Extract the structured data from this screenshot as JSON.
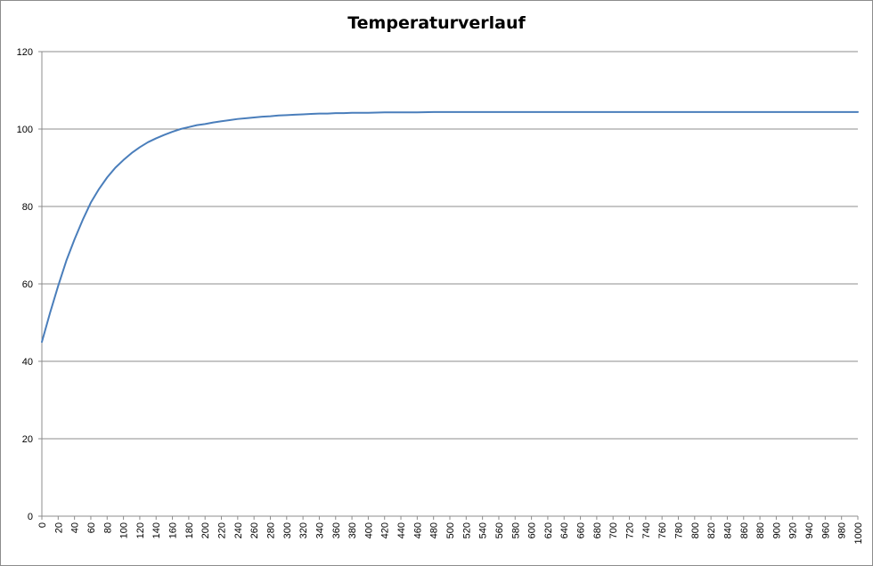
{
  "chart_data": {
    "type": "line",
    "title": "Temperaturverlauf",
    "xlabel": "",
    "ylabel": "",
    "ylim": [
      0,
      120
    ],
    "y_ticks": [
      0,
      20,
      40,
      60,
      80,
      100,
      120
    ],
    "xlim": [
      0,
      1000
    ],
    "x_ticks": [
      0,
      20,
      40,
      60,
      80,
      100,
      120,
      140,
      160,
      180,
      200,
      220,
      240,
      260,
      280,
      300,
      320,
      340,
      360,
      380,
      400,
      420,
      440,
      460,
      480,
      500,
      520,
      540,
      560,
      580,
      600,
      620,
      640,
      660,
      680,
      700,
      720,
      740,
      760,
      780,
      800,
      820,
      840,
      860,
      880,
      900,
      920,
      940,
      960,
      980,
      1000
    ],
    "grid": "horizontal",
    "legend": "none",
    "series": [
      {
        "color": "#4a7ebb",
        "x": [
          0,
          10,
          20,
          30,
          40,
          50,
          60,
          70,
          80,
          90,
          100,
          110,
          120,
          130,
          140,
          150,
          160,
          170,
          180,
          190,
          200,
          210,
          220,
          230,
          240,
          250,
          260,
          270,
          280,
          290,
          300,
          310,
          320,
          330,
          340,
          350,
          360,
          370,
          380,
          390,
          400,
          420,
          440,
          460,
          480,
          500,
          520,
          540,
          560,
          580,
          600,
          650,
          700,
          750,
          800,
          850,
          900,
          950,
          1000
        ],
        "y": [
          45,
          52.5,
          59.5,
          66,
          71.5,
          76.5,
          81,
          84.5,
          87.5,
          90,
          92,
          93.8,
          95.3,
          96.6,
          97.6,
          98.5,
          99.3,
          100,
          100.5,
          101,
          101.3,
          101.7,
          102,
          102.3,
          102.6,
          102.8,
          103,
          103.2,
          103.3,
          103.5,
          103.6,
          103.7,
          103.8,
          103.9,
          104,
          104,
          104.1,
          104.1,
          104.2,
          104.2,
          104.2,
          104.3,
          104.3,
          104.3,
          104.4,
          104.4,
          104.4,
          104.4,
          104.4,
          104.4,
          104.4,
          104.4,
          104.4,
          104.4,
          104.4,
          104.4,
          104.4,
          104.4,
          104.4
        ]
      }
    ]
  }
}
